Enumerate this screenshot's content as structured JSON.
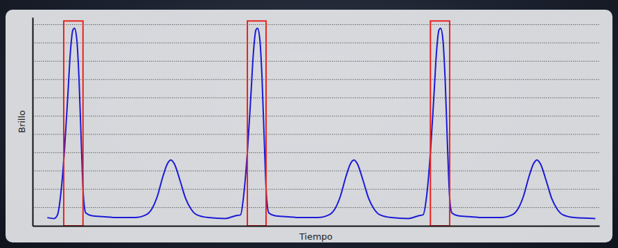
{
  "chart_data": {
    "type": "line",
    "x_label": "Tiempo",
    "y_label": "Brillo",
    "x": [
      2.6,
      3.8,
      4.4,
      5.0,
      5.6,
      6.2,
      6.7,
      7.1,
      7.4,
      7.8,
      8.2,
      8.6,
      9.0,
      9.4,
      10.5,
      12.5,
      15,
      18,
      20,
      21,
      22,
      23,
      23.8,
      24.4,
      25,
      26,
      27,
      28,
      29,
      31,
      34,
      35.8,
      36.7,
      37.3,
      37.9,
      38.5,
      39.0,
      39.4,
      39.7,
      40.1,
      40.5,
      40.9,
      41.3,
      41.7,
      42.8,
      44.8,
      47.3,
      50.3,
      52.3,
      53.3,
      54.3,
      55.3,
      56.1,
      56.7,
      57.3,
      58.3,
      59.3,
      60.3,
      61.3,
      63.3,
      66.3,
      68.1,
      68.9,
      69.6,
      70.2,
      70.8,
      71.3,
      71.7,
      72.0,
      72.4,
      72.8,
      73.2,
      73.6,
      74.0,
      75.1,
      77.1,
      79.6,
      82.6,
      84.6,
      85.6,
      86.6,
      87.6,
      88.4,
      89.0,
      89.6,
      90.6,
      91.6,
      92.6,
      93.6,
      95.6,
      99.3
    ],
    "series": [
      {
        "name": "Brillo",
        "color": "#1a1ad6",
        "values": [
          0.45,
          0.4,
          0.6,
          1.8,
          4.0,
          7.0,
          9.6,
          10.7,
          10.8,
          10.2,
          8.0,
          4.5,
          1.5,
          0.7,
          0.55,
          0.5,
          0.45,
          0.45,
          0.6,
          0.9,
          1.6,
          2.7,
          3.4,
          3.6,
          3.4,
          2.5,
          1.5,
          0.9,
          0.6,
          0.45,
          0.4,
          0.55,
          0.6,
          1.8,
          4.0,
          7.0,
          9.6,
          10.7,
          10.8,
          10.2,
          8.0,
          4.5,
          1.5,
          0.7,
          0.55,
          0.5,
          0.45,
          0.45,
          0.6,
          0.9,
          1.6,
          2.7,
          3.4,
          3.6,
          3.4,
          2.5,
          1.5,
          0.9,
          0.6,
          0.45,
          0.4,
          0.55,
          0.6,
          1.8,
          4.0,
          7.0,
          9.6,
          10.7,
          10.8,
          10.2,
          8.0,
          4.5,
          1.5,
          0.7,
          0.55,
          0.5,
          0.45,
          0.45,
          0.6,
          0.9,
          1.6,
          2.7,
          3.4,
          3.6,
          3.4,
          2.5,
          1.5,
          0.9,
          0.6,
          0.45,
          0.4
        ]
      }
    ],
    "xlim": [
      0,
      100
    ],
    "ylim": [
      0,
      11.4
    ],
    "yticks": [
      1,
      2,
      3,
      4,
      5,
      6,
      7,
      8,
      9,
      10,
      11
    ],
    "grid": true,
    "tick_labels": false,
    "highlights": {
      "color": "#e8231f",
      "rects": [
        {
          "x0": 5.5,
          "x1": 8.9,
          "y0": 0,
          "y1": 11.2
        },
        {
          "x0": 37.9,
          "x1": 41.2,
          "y0": 0,
          "y1": 11.2
        },
        {
          "x0": 70.2,
          "x1": 73.6,
          "y0": 0,
          "y1": 11.2
        }
      ]
    }
  }
}
